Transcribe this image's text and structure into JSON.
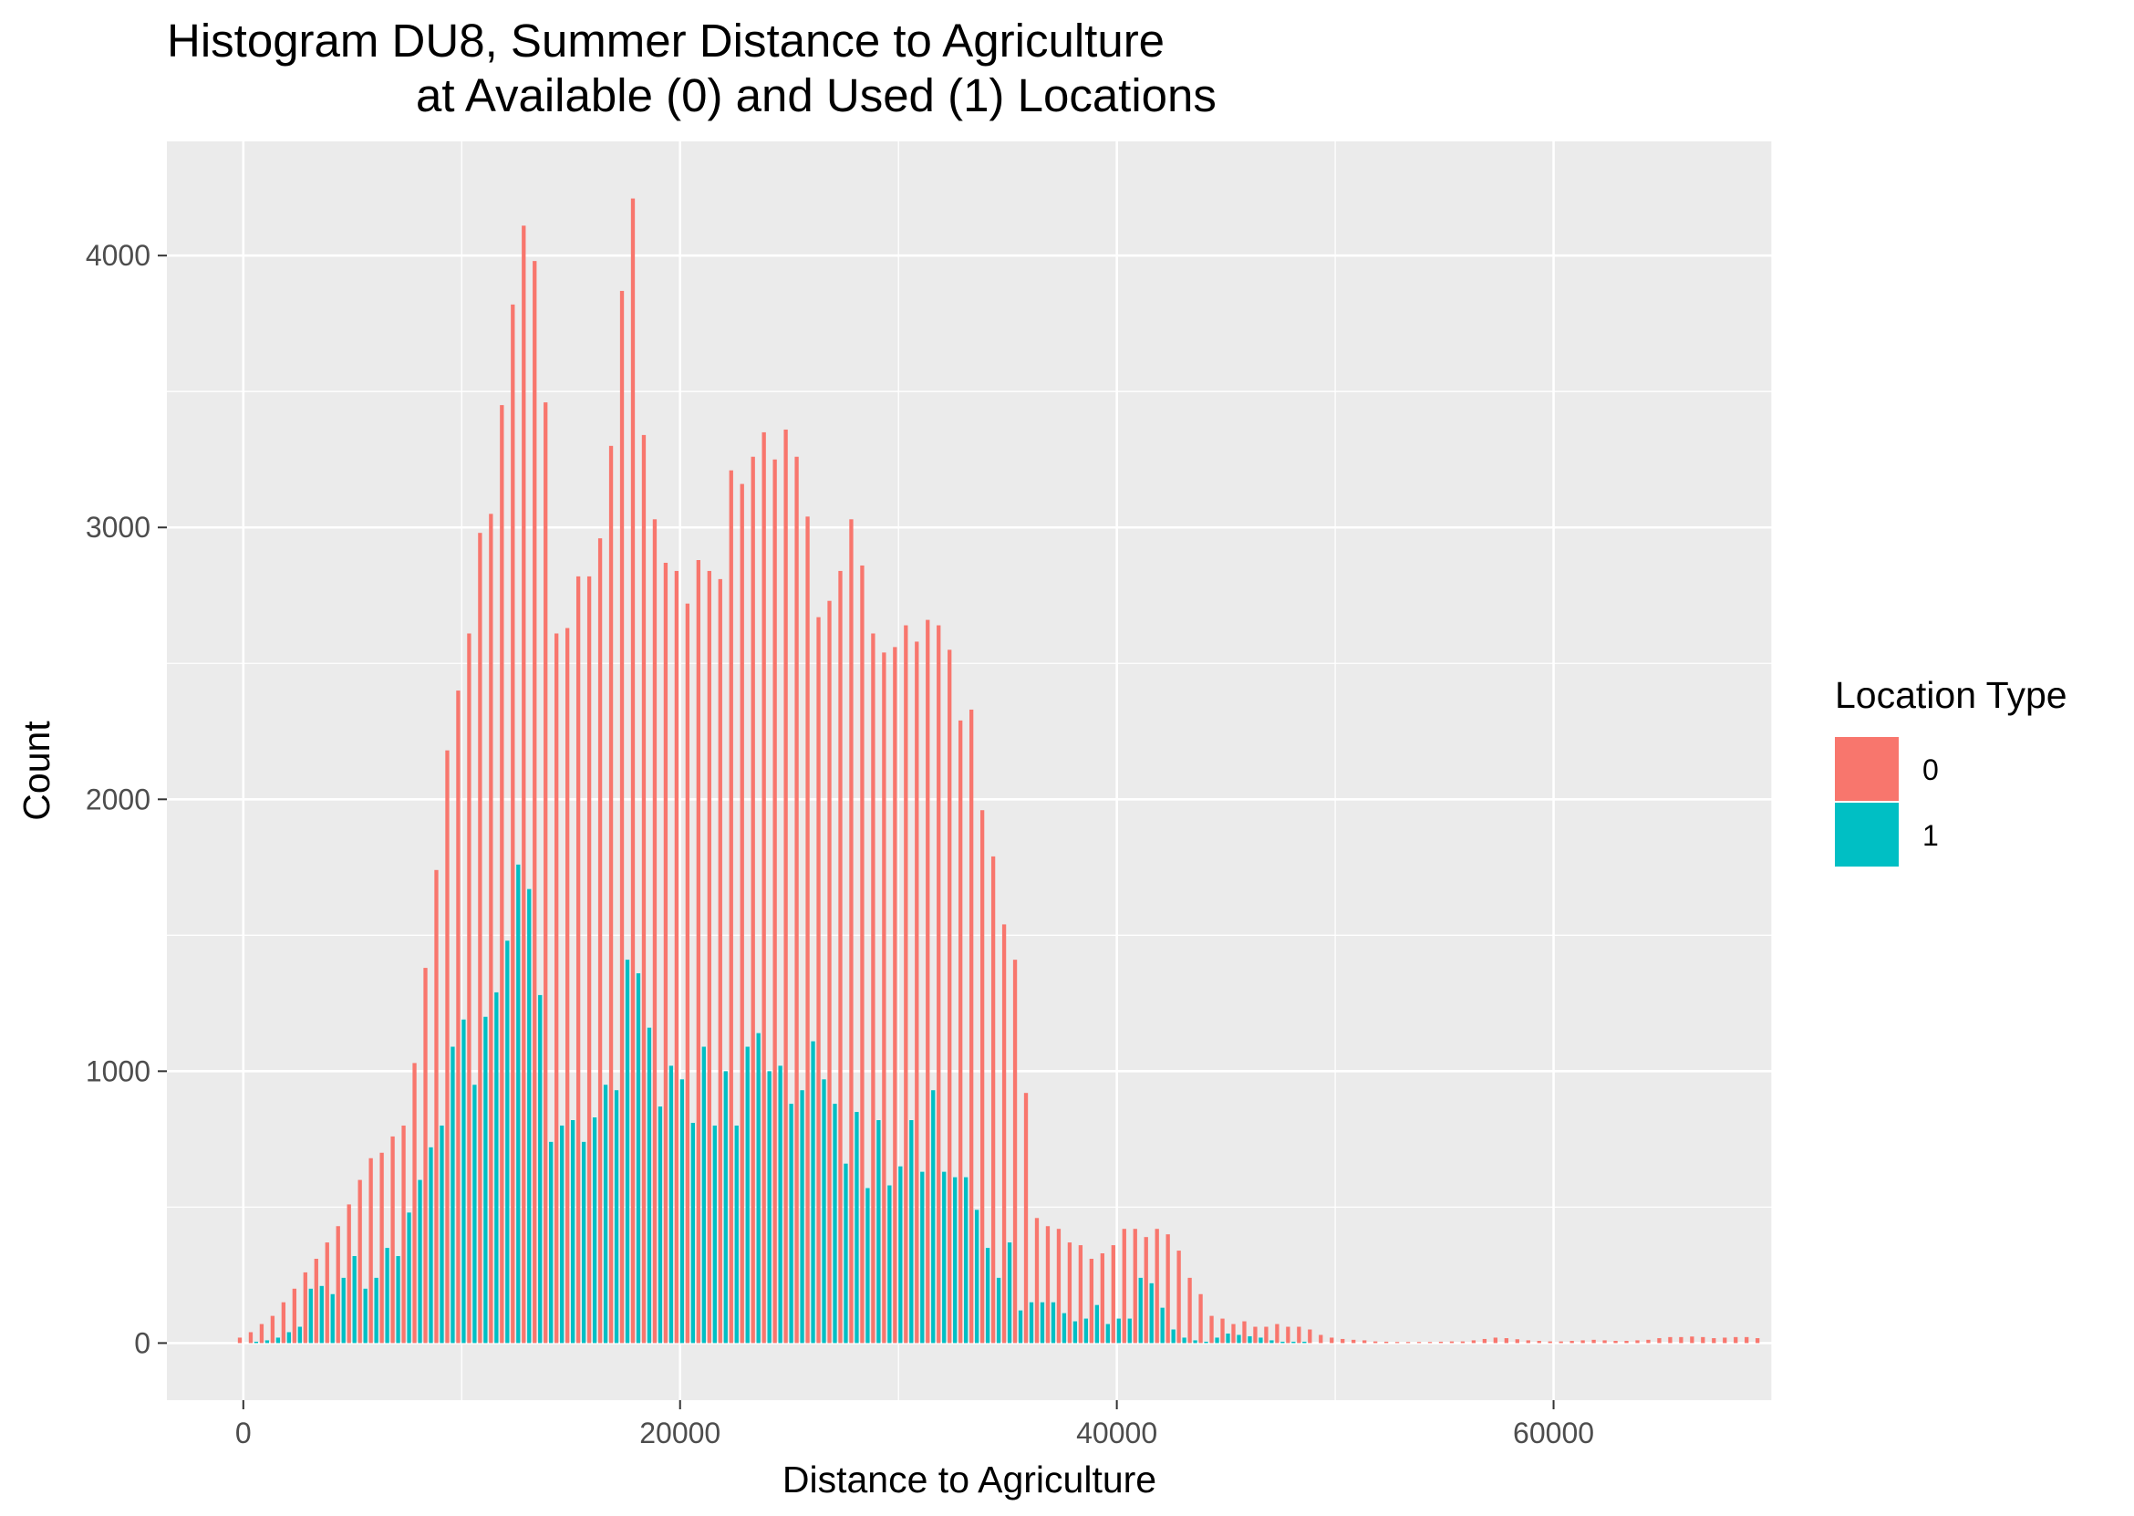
{
  "chart_data": {
    "type": "bar",
    "title_line1": "Histogram DU8, Summer Distance to Agriculture",
    "title_line2": "at Available (0) and Used (1) Locations",
    "xlabel": "Distance to Agriculture",
    "ylabel": "Count",
    "xlim": [
      -3500,
      70000
    ],
    "ylim": [
      -210,
      4420
    ],
    "bin_width": 500,
    "x_ticks": [
      0,
      20000,
      40000,
      60000
    ],
    "x_tick_labels": [
      "0",
      "20000",
      "40000",
      "60000"
    ],
    "y_ticks": [
      0,
      1000,
      2000,
      3000,
      4000
    ],
    "y_tick_labels": [
      "0",
      "1000",
      "2000",
      "3000",
      "4000"
    ],
    "grid": true,
    "legend": {
      "title": "Location Type",
      "position": "right",
      "entries": [
        {
          "label": "0",
          "color": "#F8766D"
        },
        {
          "label": "1",
          "color": "#00BFC4"
        }
      ]
    },
    "colors": {
      "panel": "#EBEBEB",
      "grid": "#FFFFFF",
      "series0": "#F8766D",
      "series1": "#00BFC4"
    },
    "series": [
      {
        "name": "0",
        "values": [
          20,
          40,
          70,
          100,
          150,
          200,
          260,
          310,
          370,
          430,
          510,
          600,
          680,
          700,
          760,
          800,
          1030,
          1380,
          1740,
          2180,
          2400,
          2610,
          2980,
          3050,
          3450,
          3820,
          4110,
          3980,
          3460,
          2610,
          2630,
          2820,
          2820,
          2960,
          3300,
          3870,
          4210,
          3340,
          3030,
          2870,
          2840,
          2720,
          2880,
          2840,
          2810,
          3210,
          3160,
          3260,
          3350,
          3250,
          3360,
          3260,
          3040,
          2670,
          2730,
          2840,
          3030,
          2860,
          2610,
          2540,
          2560,
          2640,
          2580,
          2660,
          2640,
          2550,
          2290,
          2330,
          1960,
          1790,
          1540,
          1410,
          920,
          460,
          430,
          420,
          370,
          360,
          310,
          330,
          360,
          420,
          420,
          390,
          420,
          400,
          340,
          240,
          180,
          100,
          90,
          70,
          80,
          60,
          60,
          70,
          60,
          60,
          50,
          30,
          20,
          15,
          12,
          10,
          6,
          5,
          4,
          4,
          4,
          4,
          5,
          6,
          6,
          10,
          15,
          20,
          18,
          14,
          10,
          8,
          6,
          6,
          8,
          10,
          12,
          10,
          8,
          8,
          10,
          12,
          18,
          22,
          22,
          24,
          22,
          18,
          20,
          22,
          22,
          18
        ]
      },
      {
        "name": "1",
        "values": [
          0,
          5,
          10,
          20,
          40,
          60,
          200,
          210,
          180,
          240,
          320,
          200,
          240,
          350,
          320,
          480,
          600,
          720,
          800,
          1090,
          1190,
          950,
          1200,
          1290,
          1480,
          1760,
          1670,
          1280,
          740,
          800,
          820,
          740,
          830,
          950,
          930,
          1410,
          1360,
          1160,
          870,
          1020,
          970,
          810,
          1090,
          800,
          1000,
          800,
          1090,
          1140,
          1000,
          1020,
          880,
          930,
          1110,
          970,
          880,
          660,
          850,
          570,
          820,
          580,
          650,
          820,
          630,
          930,
          630,
          610,
          610,
          490,
          350,
          240,
          370,
          120,
          150,
          150,
          150,
          110,
          80,
          90,
          140,
          70,
          90,
          90,
          240,
          220,
          130,
          50,
          20,
          10,
          5,
          20,
          35,
          30,
          25,
          20,
          10,
          5,
          5,
          5,
          0,
          0,
          0,
          0,
          0,
          0,
          0,
          0,
          0,
          0,
          0,
          0,
          0,
          0,
          0,
          0,
          0,
          0,
          0,
          0,
          0,
          0,
          0,
          0,
          0,
          0,
          0,
          0,
          0,
          0,
          0,
          0,
          0,
          0,
          0,
          0,
          0,
          0,
          0,
          0,
          0,
          0
        ]
      }
    ]
  }
}
